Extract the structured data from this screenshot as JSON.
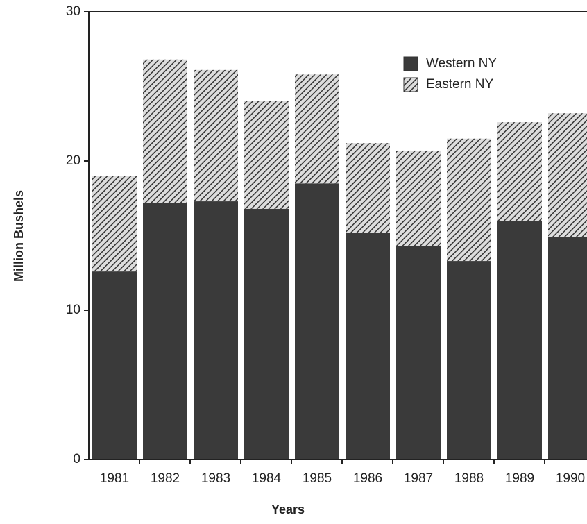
{
  "chart_data": {
    "type": "stacked_bar",
    "xlabel": "Years",
    "ylabel": "Million Bushels",
    "categories": [
      "1981",
      "1982",
      "1983",
      "1984",
      "1985",
      "1986",
      "1987",
      "1988",
      "1989",
      "1990"
    ],
    "series": [
      {
        "name": "Western NY",
        "color": "#3a3a3a",
        "values": [
          12.6,
          17.2,
          17.3,
          16.8,
          18.5,
          15.2,
          14.3,
          13.3,
          16.0,
          14.9
        ]
      },
      {
        "name": "Eastern NY",
        "color": "#3a3a3a",
        "pattern": "hatch",
        "values": [
          6.4,
          9.6,
          8.8,
          7.2,
          7.3,
          6.0,
          6.4,
          8.2,
          6.6,
          8.3
        ]
      }
    ],
    "ylim": [
      0,
      30
    ],
    "yticks": [
      0,
      10,
      20,
      30
    ],
    "legend": "top-right"
  }
}
